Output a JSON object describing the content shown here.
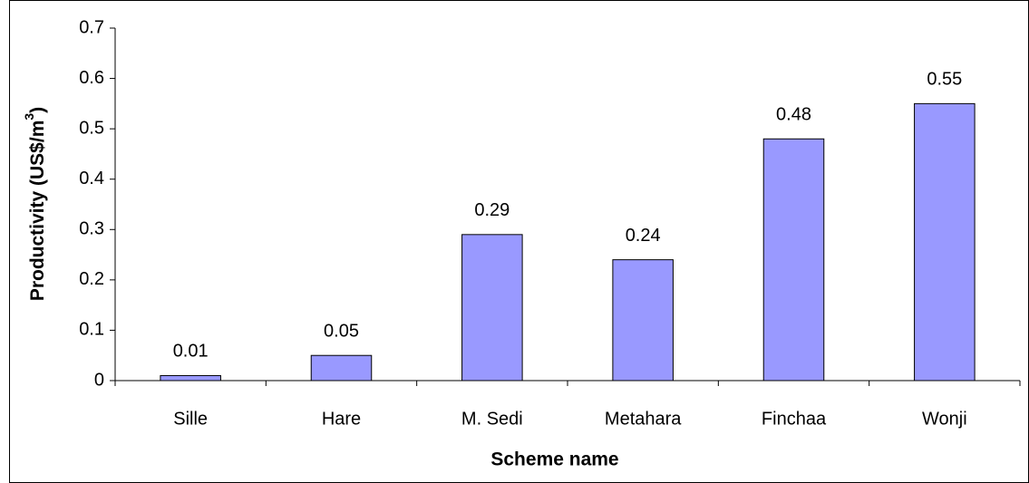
{
  "chart_data": {
    "type": "bar",
    "x_label": "Scheme name",
    "y_label_parts": [
      "Productivity (US$/m",
      "3",
      ")"
    ],
    "categories": [
      "Sille",
      "Hare",
      "M. Sedi",
      "Metahara",
      "Finchaa",
      "Wonji"
    ],
    "values": [
      0.01,
      0.05,
      0.29,
      0.24,
      0.48,
      0.55
    ],
    "color": "#9999ff",
    "ylim": [
      0,
      0.7
    ],
    "yticks": [
      0,
      0.1,
      0.2,
      0.3,
      0.4,
      0.5,
      0.6,
      0.7
    ],
    "grid": false
  }
}
